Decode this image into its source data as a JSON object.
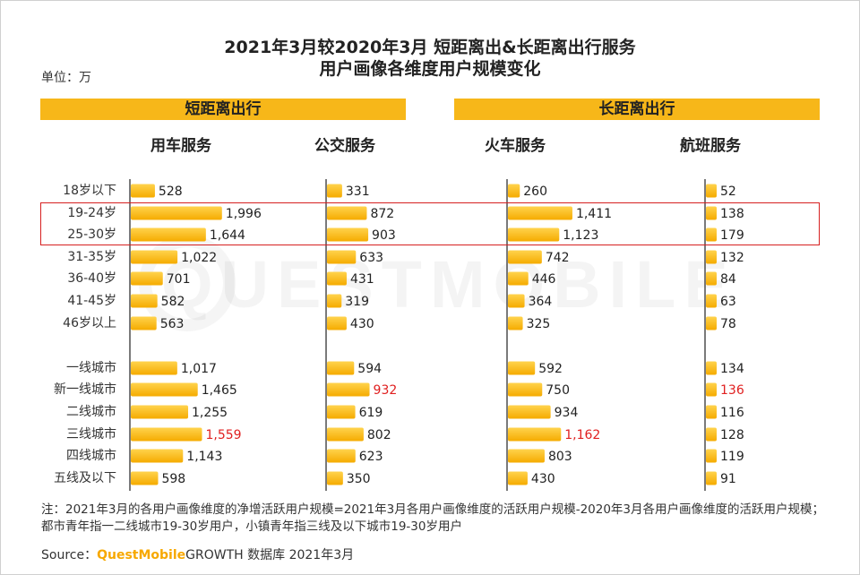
{
  "title_line1": "2021年3月较2020年3月 短距离出&长距离出行服务",
  "title_line2": "用户画像各维度用户规模变化",
  "unit": "单位：万",
  "group_short": "短距离出行",
  "group_long": "长距离出行",
  "note": "注：2021年3月的各用户画像维度的净增活跃用户规模=2021年3月各用户画像维度的活跃用户规模-2020年3月各用户画像维度的活跃用户规模；都市青年指一二线城市19-30岁用户，小镇青年指三线及以下城市19-30岁用户",
  "source_prefix": "Source：",
  "source_brand": "QuestMobile",
  "source_suffix": "GROWTH 数据库 2021年3月",
  "watermark": "QUESTMOBILE",
  "colors": {
    "bar": "#f7b719",
    "bar_light": "#ffd966",
    "highlight": "#d62020",
    "header": "#f7b719"
  },
  "chart_data": {
    "type": "bar",
    "orientation": "horizontal",
    "categories": [
      "18岁以下",
      "19-24岁",
      "25-30岁",
      "31-35岁",
      "36-40岁",
      "41-45岁",
      "46岁以上",
      "一线城市",
      "新一线城市",
      "二线城市",
      "三线城市",
      "四线城市",
      "五线及以下"
    ],
    "highlighted_categories": [
      "19-24岁",
      "25-30岁"
    ],
    "series": [
      {
        "name": "用车服务",
        "group": "短距离出行",
        "values": [
          528,
          1996,
          1644,
          1022,
          701,
          582,
          563,
          1017,
          1465,
          1255,
          1559,
          1143,
          598
        ],
        "red_label_index": 10
      },
      {
        "name": "公交服务",
        "group": "短距离出行",
        "values": [
          331,
          872,
          903,
          633,
          431,
          319,
          430,
          594,
          932,
          619,
          802,
          623,
          350
        ],
        "red_label_index": 8
      },
      {
        "name": "火车服务",
        "group": "长距离出行",
        "values": [
          260,
          1411,
          1123,
          742,
          446,
          364,
          325,
          592,
          750,
          934,
          1162,
          803,
          430
        ],
        "red_label_index": 10
      },
      {
        "name": "航班服务",
        "group": "长距离出行",
        "values": [
          52,
          138,
          179,
          132,
          84,
          63,
          78,
          134,
          136,
          116,
          128,
          119,
          91
        ],
        "red_label_index": 8
      }
    ]
  }
}
